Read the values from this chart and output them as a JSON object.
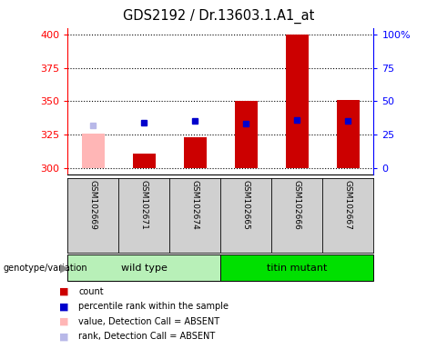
{
  "title": "GDS2192 / Dr.13603.1.A1_at",
  "samples": [
    "GSM102669",
    "GSM102671",
    "GSM102674",
    "GSM102665",
    "GSM102666",
    "GSM102667"
  ],
  "group_labels": [
    "wild type",
    "titin mutant"
  ],
  "bar_base": 300,
  "count_values": [
    326,
    311,
    323,
    350,
    400,
    351
  ],
  "count_absent": [
    true,
    false,
    false,
    false,
    false,
    false
  ],
  "rank_values": [
    332,
    334,
    335,
    333,
    336,
    335
  ],
  "rank_absent": [
    true,
    false,
    false,
    false,
    false,
    false
  ],
  "ylim_left": [
    295,
    405
  ],
  "yticks_left": [
    300,
    325,
    350,
    375,
    400
  ],
  "yticks_right": [
    0,
    25,
    50,
    75,
    100
  ],
  "yticklabels_right": [
    "0",
    "25",
    "50",
    "75",
    "100%"
  ],
  "bar_color_present": "#cc0000",
  "bar_color_absent": "#ffb6b6",
  "rank_color_present": "#0000cc",
  "rank_color_absent": "#b8b8e8",
  "grid_style": "dotted",
  "grid_color": "black",
  "bg_plot": "white",
  "bg_sample": "#d0d0d0",
  "bg_group_wt": "#b8f0b8",
  "bg_group_tm": "#00e000",
  "legend_items": [
    {
      "color": "#cc0000",
      "label": "count"
    },
    {
      "color": "#0000cc",
      "label": "percentile rank within the sample"
    },
    {
      "color": "#ffb6b6",
      "label": "value, Detection Call = ABSENT"
    },
    {
      "color": "#b8b8e8",
      "label": "rank, Detection Call = ABSENT"
    }
  ]
}
